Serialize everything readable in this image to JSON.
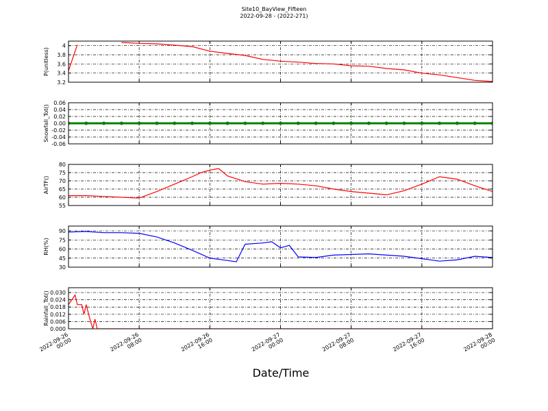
{
  "chart_data": [
    {
      "type": "line",
      "title": "Site10_BayView_Fifteen",
      "subtitle": "2022-09-28 - (2022-271)",
      "y_label": "P(unitless)",
      "color": "#ff0000",
      "grid": true,
      "xlim": [
        "2022-09-26 00:00",
        "2022-09-28 00:00"
      ],
      "xticks": [
        "2022-09-26 00:00",
        "2022-09-26 08:00",
        "2022-09-26 16:00",
        "2022-09-27 00:00",
        "2022-09-27 08:00",
        "2022-09-27 16:00",
        "2022-09-28 00:00"
      ],
      "ylim": [
        3.2,
        4.1
      ],
      "yticks": [
        3.2,
        3.4,
        3.6,
        3.8,
        4.0
      ],
      "x": [
        "2022-09-26 00:00",
        "2022-09-26 01:00",
        "2022-09-26 02:00",
        "2022-09-26 04:00",
        "2022-09-26 06:00",
        "2022-09-26 08:00",
        "2022-09-26 10:00",
        "2022-09-26 12:00",
        "2022-09-26 14:00",
        "2022-09-26 16:00",
        "2022-09-26 18:00",
        "2022-09-26 20:00",
        "2022-09-26 22:00",
        "2022-09-27 00:00",
        "2022-09-27 02:00",
        "2022-09-27 04:00",
        "2022-09-27 06:00",
        "2022-09-27 08:00",
        "2022-09-27 10:00",
        "2022-09-27 12:00",
        "2022-09-27 14:00",
        "2022-09-27 16:00",
        "2022-09-27 18:00",
        "2022-09-27 20:00",
        "2022-09-27 22:00",
        "2022-09-28 00:00"
      ],
      "values": [
        3.45,
        4.02,
        null,
        null,
        4.07,
        4.05,
        4.04,
        4.01,
        3.98,
        3.88,
        3.83,
        3.785,
        3.7,
        3.66,
        3.64,
        3.61,
        3.6,
        3.56,
        3.55,
        3.5,
        3.47,
        3.4,
        3.36,
        3.3,
        3.24,
        3.215
      ]
    },
    {
      "type": "line",
      "y_label": "Snowfall_Tot()",
      "color": "#008000",
      "marker": true,
      "grid": true,
      "xlim": [
        "2022-09-26 00:00",
        "2022-09-28 00:00"
      ],
      "xticks": [
        "2022-09-26 00:00",
        "2022-09-26 08:00",
        "2022-09-26 16:00",
        "2022-09-27 00:00",
        "2022-09-27 08:00",
        "2022-09-27 16:00",
        "2022-09-28 00:00"
      ],
      "ylim": [
        -0.06,
        0.06
      ],
      "yticks": [
        -0.06,
        -0.04,
        -0.02,
        {
          "value": 0,
          "label": "0.00"
        },
        0.02,
        0.04,
        0.06
      ],
      "x": [
        "2022-09-26 00:00",
        "2022-09-26 02:00",
        "2022-09-26 04:00",
        "2022-09-26 06:00",
        "2022-09-26 08:00",
        "2022-09-26 10:00",
        "2022-09-26 12:00",
        "2022-09-26 14:00",
        "2022-09-26 16:00",
        "2022-09-26 18:00",
        "2022-09-26 20:00",
        "2022-09-26 22:00",
        "2022-09-27 00:00",
        "2022-09-27 02:00",
        "2022-09-27 04:00",
        "2022-09-27 06:00",
        "2022-09-27 08:00",
        "2022-09-27 10:00",
        "2022-09-27 12:00",
        "2022-09-27 14:00",
        "2022-09-27 16:00",
        "2022-09-27 18:00",
        "2022-09-27 20:00",
        "2022-09-27 22:00",
        "2022-09-28 00:00"
      ],
      "values": [
        0,
        0,
        0,
        0,
        0,
        0,
        0,
        0,
        0,
        0,
        0,
        0,
        0,
        0,
        0,
        0,
        0,
        0,
        0,
        0,
        0,
        0,
        0,
        0,
        0
      ]
    },
    {
      "type": "line",
      "y_label": "AirTF()",
      "color": "#ff0000",
      "grid": true,
      "xlim": [
        "2022-09-26 00:00",
        "2022-09-28 00:00"
      ],
      "xticks": [
        "2022-09-26 00:00",
        "2022-09-26 08:00",
        "2022-09-26 16:00",
        "2022-09-27 00:00",
        "2022-09-27 08:00",
        "2022-09-27 16:00",
        "2022-09-28 00:00"
      ],
      "ylim": [
        55,
        80
      ],
      "yticks": [
        55,
        60,
        65,
        70,
        75,
        80
      ],
      "x": [
        "2022-09-26 00:00",
        "2022-09-26 02:00",
        "2022-09-26 04:00",
        "2022-09-26 06:00",
        "2022-09-26 08:00",
        "2022-09-26 10:00",
        "2022-09-26 12:00",
        "2022-09-26 14:00",
        "2022-09-26 15:00",
        "2022-09-26 16:00",
        "2022-09-26 17:00",
        "2022-09-26 18:00",
        "2022-09-26 20:00",
        "2022-09-26 22:00",
        "2022-09-27 00:00",
        "2022-09-27 02:00",
        "2022-09-27 04:00",
        "2022-09-27 06:00",
        "2022-09-27 08:00",
        "2022-09-27 10:00",
        "2022-09-27 12:00",
        "2022-09-27 14:00",
        "2022-09-27 16:00",
        "2022-09-27 18:00",
        "2022-09-27 20:00",
        "2022-09-27 22:00",
        "2022-09-28 00:00"
      ],
      "values": [
        61,
        61,
        60.5,
        60,
        59.5,
        63.5,
        68,
        72.5,
        75,
        76.5,
        77.5,
        73,
        69.5,
        68,
        68.5,
        68,
        67,
        65,
        63.5,
        62.5,
        61.5,
        64,
        68,
        72.5,
        71,
        67,
        63.5
      ]
    },
    {
      "type": "line",
      "y_label": "RH(%)",
      "color": "#0000ff",
      "grid": true,
      "xlim": [
        "2022-09-26 00:00",
        "2022-09-28 00:00"
      ],
      "xticks": [
        "2022-09-26 00:00",
        "2022-09-26 08:00",
        "2022-09-26 16:00",
        "2022-09-27 00:00",
        "2022-09-27 08:00",
        "2022-09-27 16:00",
        "2022-09-28 00:00"
      ],
      "ylim": [
        30,
        98
      ],
      "yticks": [
        30,
        45,
        60,
        75,
        90
      ],
      "x": [
        "2022-09-26 00:00",
        "2022-09-26 02:00",
        "2022-09-26 04:00",
        "2022-09-26 06:00",
        "2022-09-26 08:00",
        "2022-09-26 10:00",
        "2022-09-26 12:00",
        "2022-09-26 14:00",
        "2022-09-26 16:00",
        "2022-09-26 18:00",
        "2022-09-26 19:00",
        "2022-09-26 20:00",
        "2022-09-26 22:00",
        "2022-09-26 23:00",
        "2022-09-27 00:00",
        "2022-09-27 01:00",
        "2022-09-27 02:00",
        "2022-09-27 04:00",
        "2022-09-27 06:00",
        "2022-09-27 08:00",
        "2022-09-27 10:00",
        "2022-09-27 12:00",
        "2022-09-27 14:00",
        "2022-09-27 16:00",
        "2022-09-27 18:00",
        "2022-09-27 20:00",
        "2022-09-27 22:00",
        "2022-09-28 00:00"
      ],
      "values": [
        88,
        89,
        87,
        87,
        86,
        80,
        70,
        58,
        45,
        41,
        39,
        68,
        70,
        72,
        62,
        66,
        47,
        46,
        50,
        51,
        52,
        50,
        48,
        44,
        40,
        42,
        48,
        46
      ]
    },
    {
      "type": "line",
      "y_label": "Rainfall_Tot()",
      "x_label": "Date/Time",
      "color": "#ff0000",
      "grid": true,
      "xlim": [
        "2022-09-26 00:00",
        "2022-09-28 00:00"
      ],
      "xticks": [
        "2022-09-26 00:00",
        "2022-09-26 08:00",
        "2022-09-26 16:00",
        "2022-09-27 00:00",
        "2022-09-27 08:00",
        "2022-09-27 16:00",
        "2022-09-28 00:00"
      ],
      "ylim": [
        0,
        0.034
      ],
      "yticks": [
        {
          "value": 0,
          "label": "0.000"
        },
        {
          "value": 0.006,
          "label": "0.006"
        },
        {
          "value": 0.012,
          "label": "0.012"
        },
        {
          "value": 0.018,
          "label": "0.018"
        },
        {
          "value": 0.024,
          "label": "0.024"
        },
        {
          "value": 0.03,
          "label": "0.030"
        }
      ],
      "x": [
        "2022-09-26 00:00",
        "2022-09-26 00:45",
        "2022-09-26 01:00",
        "2022-09-26 01:30",
        "2022-09-26 01:45",
        "2022-09-26 02:00",
        "2022-09-26 02:30",
        "2022-09-26 02:45",
        "2022-09-26 03:00",
        "2022-09-26 03:15",
        "2022-09-26 08:00",
        "2022-09-26 16:00",
        "2022-09-27 00:00",
        "2022-09-27 08:00",
        "2022-09-27 16:00",
        "2022-09-28 00:00"
      ],
      "values": [
        0.02,
        0.028,
        0.02,
        0.02,
        0.012,
        0.02,
        0.006,
        0,
        0.008,
        0,
        0,
        0,
        0,
        0,
        0,
        0
      ]
    }
  ]
}
